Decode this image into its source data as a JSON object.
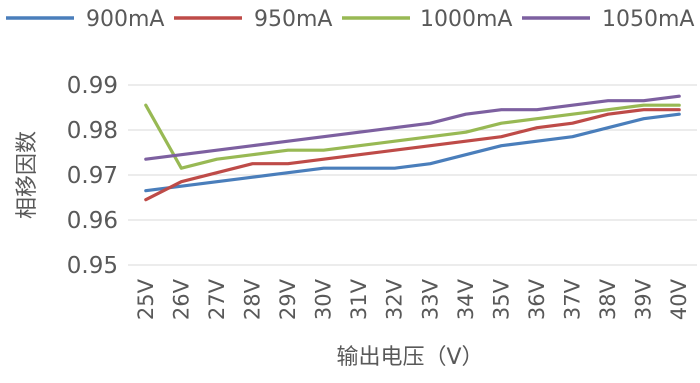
{
  "chart_data": {
    "type": "line",
    "title": "",
    "xlabel": "输出电压（V）",
    "ylabel": "相移因数",
    "categories": [
      "25V",
      "26V",
      "27V",
      "28V",
      "29V",
      "30V",
      "31V",
      "32V",
      "33V",
      "34V",
      "35V",
      "36V",
      "37V",
      "38V",
      "39V",
      "40V"
    ],
    "ylim": [
      0.95,
      0.99
    ],
    "yticks": [
      "0.95",
      "0.96",
      "0.97",
      "0.98",
      "0.99"
    ],
    "grid": true,
    "legend_position": "top",
    "series": [
      {
        "name": "900mA",
        "color": "#4a7ebb",
        "values": [
          0.9665,
          0.9675,
          0.9685,
          0.9695,
          0.9705,
          0.9715,
          0.9715,
          0.9715,
          0.9725,
          0.9745,
          0.9765,
          0.9775,
          0.9785,
          0.9805,
          0.9825,
          0.9835
        ]
      },
      {
        "name": "950mA",
        "color": "#be4b48",
        "values": [
          0.9645,
          0.9685,
          0.9705,
          0.9725,
          0.9725,
          0.9735,
          0.9745,
          0.9755,
          0.9765,
          0.9775,
          0.9785,
          0.9805,
          0.9815,
          0.9835,
          0.9845,
          0.9845
        ]
      },
      {
        "name": "1000mA",
        "color": "#98b954",
        "values": [
          0.9855,
          0.9715,
          0.9735,
          0.9745,
          0.9755,
          0.9755,
          0.9765,
          0.9775,
          0.9785,
          0.9795,
          0.9815,
          0.9825,
          0.9835,
          0.9845,
          0.9855,
          0.9855
        ]
      },
      {
        "name": "1050mA",
        "color": "#7d60a0",
        "values": [
          0.9735,
          0.9745,
          0.9755,
          0.9765,
          0.9775,
          0.9785,
          0.9795,
          0.9805,
          0.9815,
          0.9835,
          0.9845,
          0.9845,
          0.9855,
          0.9865,
          0.9865,
          0.9875
        ]
      }
    ]
  }
}
